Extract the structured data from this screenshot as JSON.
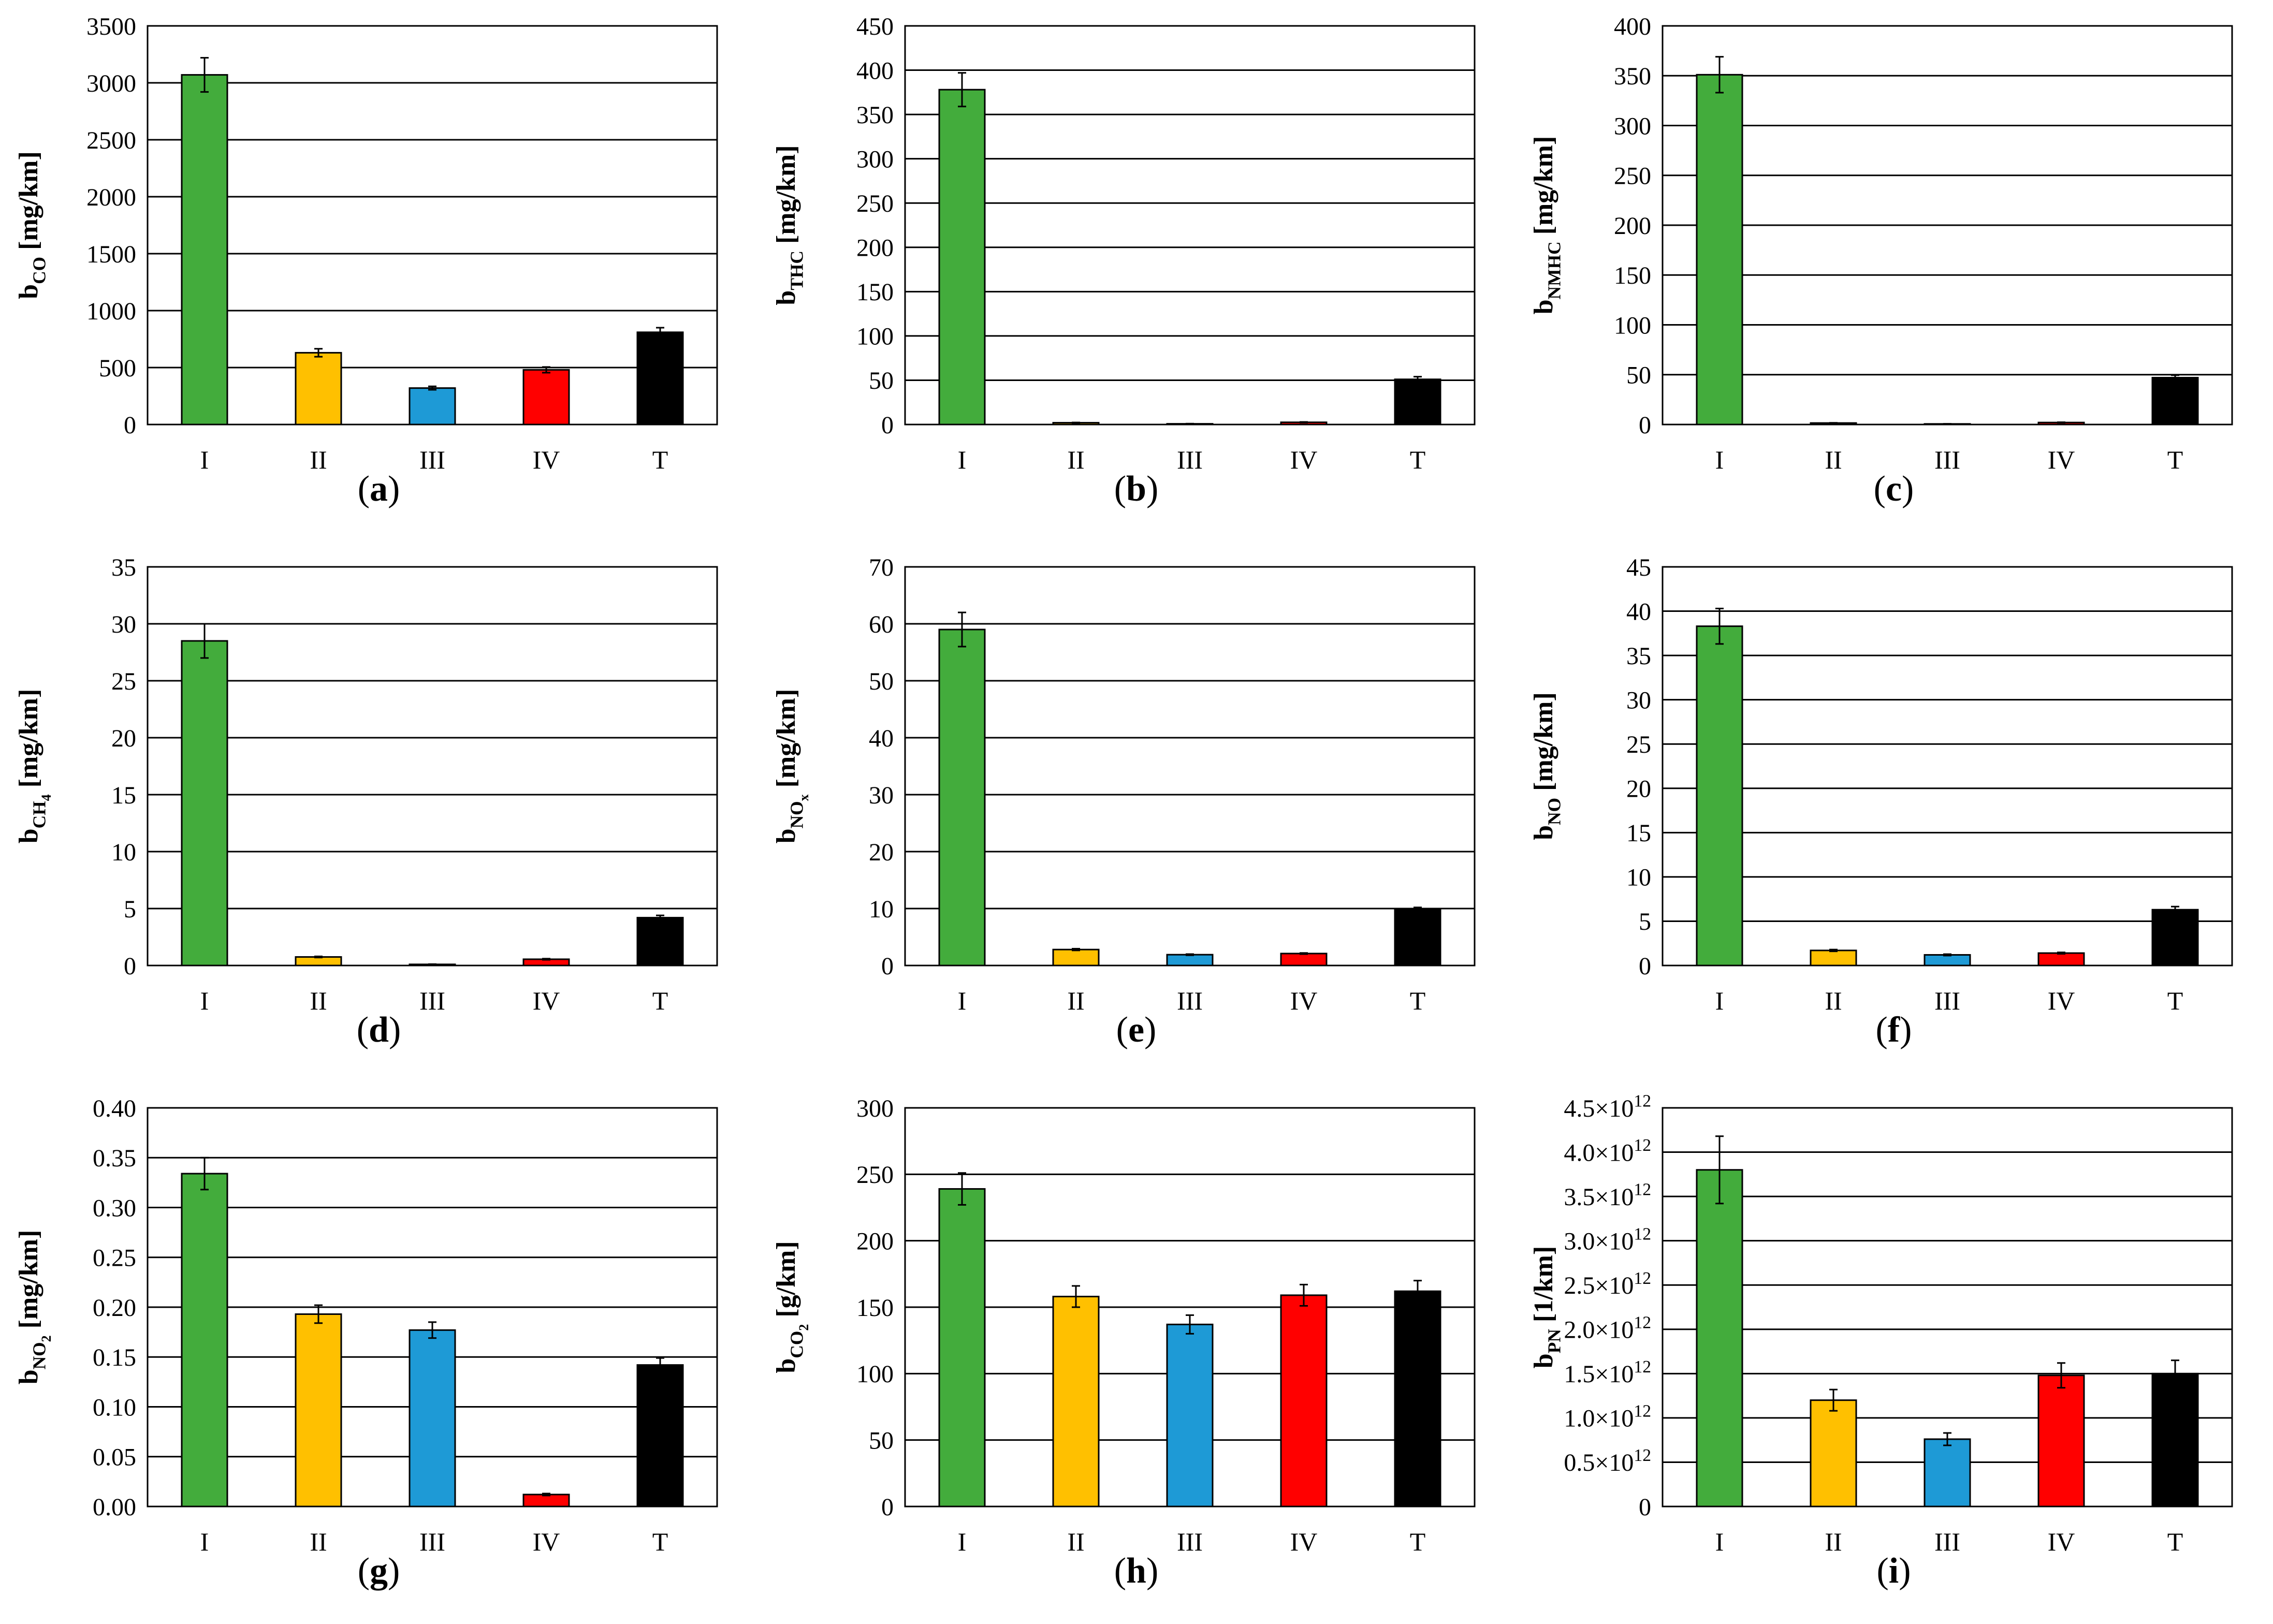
{
  "colors": {
    "I": "#43ac3c",
    "II": "#ffc000",
    "III": "#1e9ad6",
    "IV": "#ff0000",
    "T": "#000000"
  },
  "chart_data": [
    {
      "type": "bar",
      "panel": "a",
      "caption_label": "a",
      "categories": [
        "I",
        "II",
        "III",
        "IV",
        "T"
      ],
      "values": [
        3070,
        630,
        320,
        480,
        810
      ],
      "errors": [
        150,
        35,
        15,
        25,
        40
      ],
      "ylabel_main": "b",
      "ylabel_sub": "CO",
      "ylabel_unit": " [mg/km]",
      "ylim": [
        0,
        3500
      ],
      "yticks": [
        0,
        500,
        1000,
        1500,
        2000,
        2500,
        3000,
        3500
      ],
      "ytick_labels": [
        "0",
        "500",
        "1000",
        "1500",
        "2000",
        "2500",
        "3000",
        "3500"
      ]
    },
    {
      "type": "bar",
      "panel": "b",
      "caption_label": "b",
      "categories": [
        "I",
        "II",
        "III",
        "IV",
        "T"
      ],
      "values": [
        378,
        2.0,
        0.8,
        2.5,
        51
      ],
      "errors": [
        19,
        0.3,
        0.2,
        0.4,
        3
      ],
      "ylabel_main": "b",
      "ylabel_sub": "THC",
      "ylabel_unit": " [mg/km]",
      "ylim": [
        0,
        450
      ],
      "yticks": [
        0,
        50,
        100,
        150,
        200,
        250,
        300,
        350,
        400,
        450
      ],
      "ytick_labels": [
        "0",
        "50",
        "100",
        "150",
        "200",
        "250",
        "300",
        "350",
        "400",
        "450"
      ]
    },
    {
      "type": "bar",
      "panel": "c",
      "caption_label": "c",
      "categories": [
        "I",
        "II",
        "III",
        "IV",
        "T"
      ],
      "values": [
        351,
        1.5,
        0.6,
        2.0,
        47
      ],
      "errors": [
        18,
        0.2,
        0.1,
        0.3,
        2.5
      ],
      "ylabel_main": "b",
      "ylabel_sub": "NMHC",
      "ylabel_unit": " [mg/km]",
      "ylim": [
        0,
        400
      ],
      "yticks": [
        0,
        50,
        100,
        150,
        200,
        250,
        300,
        350,
        400
      ],
      "ytick_labels": [
        "0",
        "50",
        "100",
        "150",
        "200",
        "250",
        "300",
        "350",
        "400"
      ]
    },
    {
      "type": "bar",
      "panel": "d",
      "caption_label": "d",
      "categories": [
        "I",
        "II",
        "III",
        "IV",
        "T"
      ],
      "values": [
        28.5,
        0.75,
        0.1,
        0.55,
        4.2
      ],
      "errors": [
        1.5,
        0.05,
        0.02,
        0.05,
        0.2
      ],
      "ylabel_main": "b",
      "ylabel_sub": "CH",
      "ylabel_subsub": "4",
      "ylabel_unit": " [mg/km]",
      "ylim": [
        0,
        35
      ],
      "yticks": [
        0,
        5,
        10,
        15,
        20,
        25,
        30,
        35
      ],
      "ytick_labels": [
        "0",
        "5",
        "10",
        "15",
        "20",
        "25",
        "30",
        "35"
      ]
    },
    {
      "type": "bar",
      "panel": "e",
      "caption_label": "e",
      "categories": [
        "I",
        "II",
        "III",
        "IV",
        "T"
      ],
      "values": [
        59,
        2.8,
        1.9,
        2.1,
        9.8
      ],
      "errors": [
        3,
        0.15,
        0.1,
        0.1,
        0.4
      ],
      "ylabel_main": "b",
      "ylabel_sub": "NO",
      "ylabel_subsub": "x",
      "ylabel_unit": " [mg/km]",
      "ylim": [
        0,
        70
      ],
      "yticks": [
        0,
        10,
        20,
        30,
        40,
        50,
        60,
        70
      ],
      "ytick_labels": [
        "0",
        "10",
        "20",
        "30",
        "40",
        "50",
        "60",
        "70"
      ]
    },
    {
      "type": "bar",
      "panel": "f",
      "caption_label": "f",
      "categories": [
        "I",
        "II",
        "III",
        "IV",
        "T"
      ],
      "values": [
        38.3,
        1.7,
        1.2,
        1.4,
        6.3
      ],
      "errors": [
        2.0,
        0.1,
        0.08,
        0.08,
        0.35
      ],
      "ylabel_main": "b",
      "ylabel_sub": "NO",
      "ylabel_unit": " [mg/km]",
      "ylim": [
        0,
        45
      ],
      "yticks": [
        0,
        5,
        10,
        15,
        20,
        25,
        30,
        35,
        40,
        45
      ],
      "ytick_labels": [
        "0",
        "5",
        "10",
        "15",
        "20",
        "25",
        "30",
        "35",
        "40",
        "45"
      ]
    },
    {
      "type": "bar",
      "panel": "g",
      "caption_label": "g",
      "categories": [
        "I",
        "II",
        "III",
        "IV",
        "T"
      ],
      "values": [
        0.334,
        0.193,
        0.177,
        0.012,
        0.142
      ],
      "errors": [
        0.016,
        0.009,
        0.008,
        0.001,
        0.007
      ],
      "ylabel_main": "b",
      "ylabel_sub": "NO",
      "ylabel_subsub": "2",
      "ylabel_unit": " [mg/km]",
      "ylim": [
        0,
        0.4
      ],
      "yticks": [
        0,
        0.05,
        0.1,
        0.15,
        0.2,
        0.25,
        0.3,
        0.35,
        0.4
      ],
      "ytick_labels": [
        "0.00",
        "0.05",
        "0.10",
        "0.15",
        "0.20",
        "0.25",
        "0.30",
        "0.35",
        "0.40"
      ]
    },
    {
      "type": "bar",
      "panel": "h",
      "caption_label": "h",
      "categories": [
        "I",
        "II",
        "III",
        "IV",
        "T"
      ],
      "values": [
        239,
        158,
        137,
        159,
        162
      ],
      "errors": [
        12,
        8,
        7,
        8,
        8
      ],
      "ylabel_main": "b",
      "ylabel_sub": "CO",
      "ylabel_subsub": "2",
      "ylabel_unit": " [g/km]",
      "ylim": [
        0,
        300
      ],
      "yticks": [
        0,
        50,
        100,
        150,
        200,
        250,
        300
      ],
      "ytick_labels": [
        "0",
        "50",
        "100",
        "150",
        "200",
        "250",
        "300"
      ]
    },
    {
      "type": "bar",
      "panel": "i",
      "caption_label": "i",
      "categories": [
        "I",
        "II",
        "III",
        "IV",
        "T"
      ],
      "values": [
        3800000000000.0,
        1200000000000.0,
        760000000000.0,
        1480000000000.0,
        1500000000000.0
      ],
      "errors": [
        380000000000.0,
        120000000000.0,
        70000000000.0,
        140000000000.0,
        150000000000.0
      ],
      "ylabel_main": "b",
      "ylabel_sub": "PN",
      "ylabel_unit": " [1/km]",
      "ylim": [
        0,
        4500000000000.0
      ],
      "yticks": [
        0,
        500000000000.0,
        1000000000000.0,
        1500000000000.0,
        2000000000000.0,
        2500000000000.0,
        3000000000000.0,
        3500000000000.0,
        4000000000000.0,
        4500000000000.0
      ],
      "ytick_labels": [
        "0",
        "0.5×10",
        "1.0×10",
        "1.5×10",
        "2.0×10",
        "2.5×10",
        "3.0×10",
        "3.5×10",
        "4.0×10",
        "4.5×10"
      ],
      "ytick_exponent": "12"
    }
  ]
}
